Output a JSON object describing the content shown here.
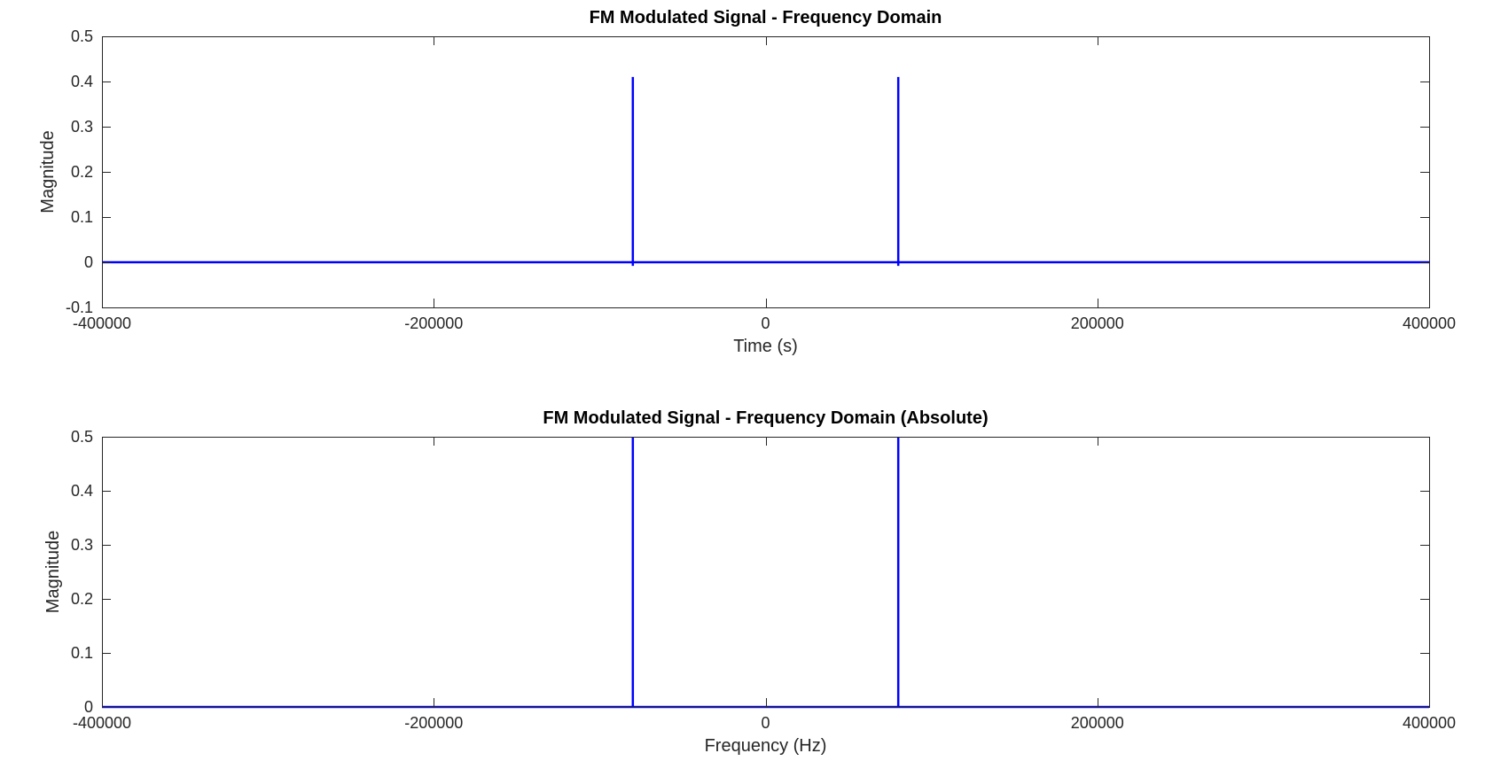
{
  "chart_data": [
    {
      "type": "line",
      "title": "FM Modulated Signal - Frequency Domain",
      "xlabel": "Time (s)",
      "ylabel": "Magnitude",
      "xlim": [
        -400000,
        400000
      ],
      "ylim": [
        -0.1,
        0.5
      ],
      "xticks": [
        "-400000",
        "-200000",
        "0",
        "200000",
        "400000"
      ],
      "yticks": [
        "-0.1",
        "0",
        "0.1",
        "0.2",
        "0.3",
        "0.4",
        "0.5"
      ],
      "grid": false,
      "series": [
        {
          "color": "#0000ff",
          "x": [
            -400000,
            -80000,
            -80000,
            -80000,
            -80000,
            80000,
            80000,
            80000,
            80000,
            400000
          ],
          "y": [
            0,
            0,
            0.41,
            -0.008,
            0,
            0,
            0.41,
            -0.008,
            0,
            0
          ]
        }
      ]
    },
    {
      "type": "line",
      "title": "FM Modulated Signal - Frequency Domain (Absolute)",
      "xlabel": "Frequency (Hz)",
      "ylabel": "Magnitude",
      "xlim": [
        -400000,
        400000
      ],
      "ylim": [
        0,
        0.5
      ],
      "xticks": [
        "-400000",
        "-200000",
        "0",
        "200000",
        "400000"
      ],
      "yticks": [
        "0",
        "0.1",
        "0.2",
        "0.3",
        "0.4",
        "0.5"
      ],
      "grid": false,
      "series": [
        {
          "color": "#0000ff",
          "x": [
            -400000,
            -80000,
            -80000,
            -80000,
            80000,
            80000,
            80000,
            400000
          ],
          "y": [
            0,
            0,
            0.5,
            0,
            0,
            0.5,
            0,
            0
          ]
        }
      ]
    }
  ]
}
